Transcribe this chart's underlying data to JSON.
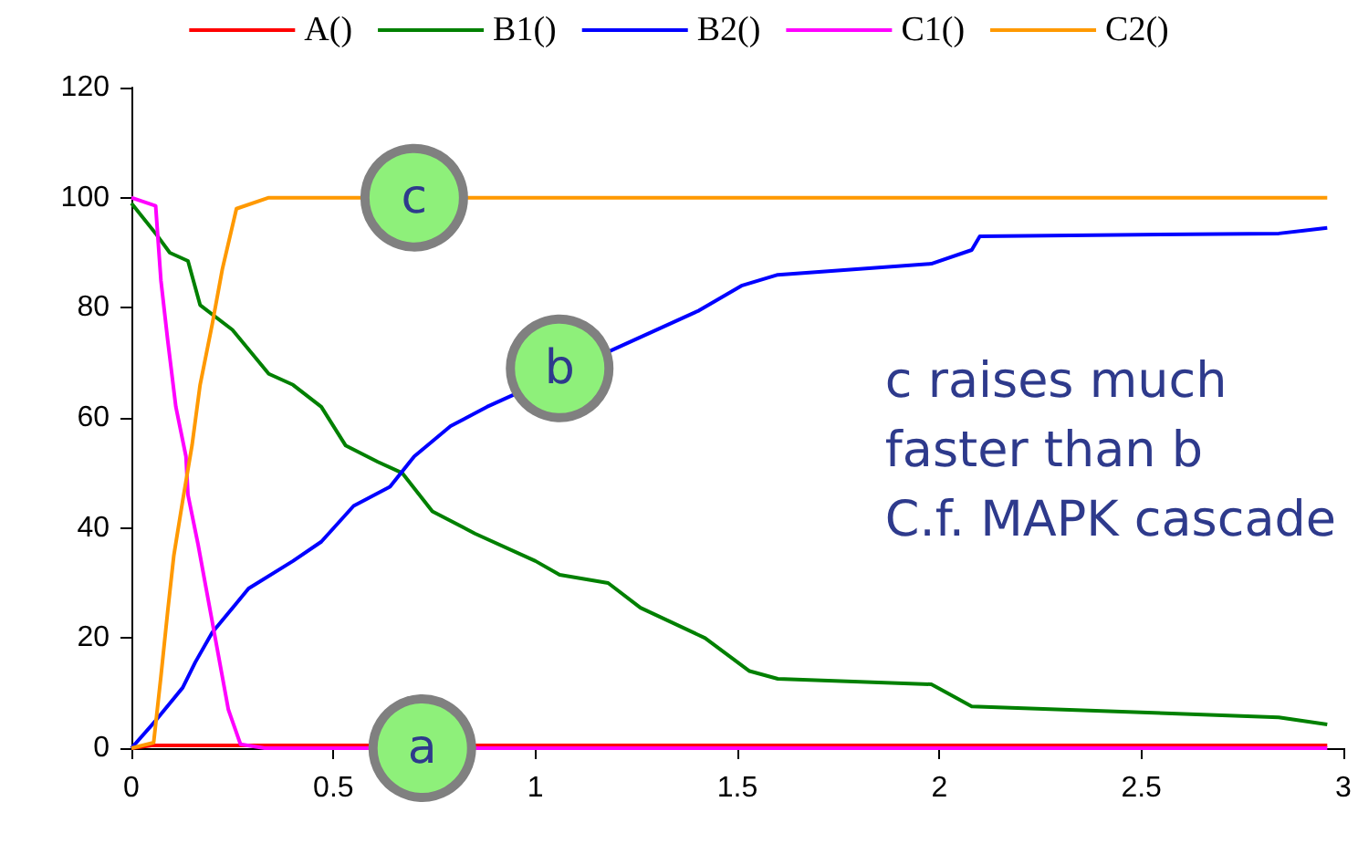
{
  "chart_data": {
    "type": "line",
    "xlim": [
      0,
      3
    ],
    "xticks": [
      0,
      0.5,
      1,
      1.5,
      2,
      2.5,
      3
    ],
    "ylim": [
      0,
      120
    ],
    "yticks": [
      0,
      20,
      40,
      60,
      80,
      100,
      120
    ],
    "grid": false,
    "legend": "top",
    "marker": "none",
    "line_style": "solid",
    "series": [
      {
        "name": "A()",
        "color": "#ff0000",
        "x": [
          0,
          0.05,
          2.96
        ],
        "values": [
          0,
          0.5,
          0.5
        ]
      },
      {
        "name": "B1()",
        "color": "#008000",
        "x": [
          0,
          0.06,
          0.095,
          0.14,
          0.17,
          0.25,
          0.34,
          0.4,
          0.47,
          0.53,
          0.61,
          0.67,
          0.745,
          0.85,
          1.0,
          1.06,
          1.18,
          1.26,
          1.42,
          1.53,
          1.6,
          1.98,
          2.08,
          2.84,
          2.96
        ],
        "values": [
          99,
          93.5,
          90,
          88.5,
          80.5,
          76,
          68,
          66,
          62,
          55,
          52,
          50,
          43,
          39,
          34,
          31.5,
          30,
          25.5,
          20,
          14,
          12.6,
          11.6,
          7.6,
          5.6,
          4.3
        ]
      },
      {
        "name": "B2()",
        "color": "#0000ff",
        "x": [
          0,
          0.06,
          0.127,
          0.158,
          0.2,
          0.29,
          0.4,
          0.47,
          0.55,
          0.64,
          0.7,
          0.79,
          0.88,
          0.94,
          1.18,
          1.405,
          1.51,
          1.6,
          1.98,
          2.08,
          2.1,
          2.84,
          2.96
        ],
        "values": [
          0,
          5,
          11,
          15.6,
          21,
          29,
          34,
          37.5,
          44,
          47.5,
          53,
          58.5,
          62,
          64,
          72,
          79.5,
          84,
          86,
          88,
          90.5,
          93,
          93.5,
          94.5
        ]
      },
      {
        "name": "C1()",
        "color": "#ff00ff",
        "x": [
          0,
          0.06,
          0.073,
          0.09,
          0.11,
          0.135,
          0.14,
          0.165,
          0.185,
          0.21,
          0.24,
          0.27,
          0.33,
          2.96
        ],
        "values": [
          100,
          98.5,
          85,
          74,
          62,
          53,
          46,
          37,
          29,
          19,
          7,
          0.7,
          0,
          0
        ]
      },
      {
        "name": "C2()",
        "color": "#ff9900",
        "x": [
          0,
          0.055,
          0.073,
          0.09,
          0.105,
          0.127,
          0.15,
          0.17,
          0.2,
          0.225,
          0.26,
          0.34,
          2.96
        ],
        "values": [
          0,
          1,
          13,
          25,
          35,
          45,
          55,
          66,
          77,
          87,
          98,
          100,
          100
        ]
      }
    ],
    "annotations": [
      {
        "text": "a",
        "x": 0.72,
        "y": 0
      },
      {
        "text": "b",
        "x": 1.06,
        "y": 69
      },
      {
        "text": "c",
        "x": 0.7,
        "y": 100
      },
      "c raises much\nfaster than b\nC.f. MAPK cascade"
    ]
  }
}
